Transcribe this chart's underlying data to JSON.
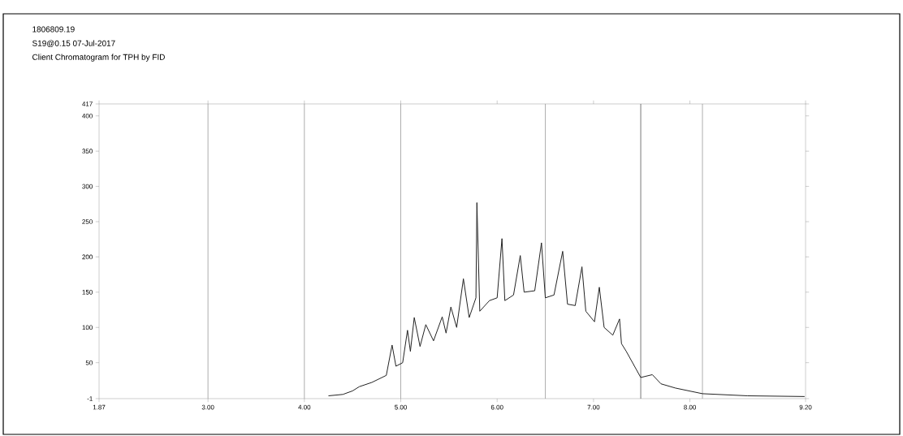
{
  "chart_data": {
    "type": "line",
    "title": "Client Chromatogram for TPH by FID",
    "annotations": [
      "1806809.19",
      "S19@0.15 07-Jul-2017"
    ],
    "x": [
      4.25,
      4.4,
      4.5,
      4.57,
      4.7,
      4.85,
      4.91,
      4.95,
      5.02,
      5.07,
      5.1,
      5.14,
      5.2,
      5.26,
      5.34,
      5.43,
      5.47,
      5.52,
      5.58,
      5.65,
      5.71,
      5.78,
      5.79,
      5.82,
      5.92,
      6.0,
      6.05,
      6.08,
      6.17,
      6.24,
      6.28,
      6.39,
      6.46,
      6.5,
      6.59,
      6.68,
      6.73,
      6.81,
      6.88,
      6.92,
      7.01,
      7.06,
      7.11,
      7.2,
      7.27,
      7.29,
      7.34,
      7.49,
      7.61,
      7.7,
      7.85,
      8.13,
      8.6,
      9.19
    ],
    "values": [
      3,
      5,
      10,
      16,
      22,
      32,
      75,
      45,
      50,
      96,
      66,
      114,
      73,
      104,
      81,
      115,
      92,
      129,
      100,
      169,
      114,
      142,
      277,
      123,
      138,
      142,
      226,
      138,
      146,
      202,
      150,
      152,
      220,
      142,
      146,
      208,
      133,
      131,
      186,
      123,
      108,
      157,
      100,
      89,
      112,
      77,
      66,
      29,
      33,
      20,
      14,
      6,
      3,
      2
    ],
    "color": "#222222",
    "line_style": "solid",
    "marker": "none",
    "grid": false,
    "xlim": [
      1.87,
      9.2
    ],
    "ylim": [
      -1,
      417
    ],
    "xticks": [
      1.87,
      {
        "value": 3,
        "label": "3.00"
      },
      {
        "value": 4,
        "label": "4.00"
      },
      {
        "value": 5,
        "label": "5.00"
      },
      {
        "value": 6,
        "label": "6.00"
      },
      {
        "value": 7,
        "label": "7.00"
      },
      {
        "value": 8,
        "label": "8.00"
      },
      {
        "value": 9.2,
        "label": "9.20"
      }
    ],
    "yticks": [
      -1,
      50,
      100,
      150,
      200,
      250,
      300,
      350,
      400,
      417
    ],
    "ref_lines": [
      {
        "axis": "x",
        "value": 3.0,
        "color": "#999999"
      },
      {
        "axis": "x",
        "value": 4.0,
        "color": "#999999"
      },
      {
        "axis": "x",
        "value": 5.0,
        "color": "#999999"
      },
      {
        "axis": "x",
        "value": 6.5,
        "color": "#999999"
      },
      {
        "axis": "x",
        "value": 7.49,
        "color": "#555555"
      },
      {
        "axis": "x",
        "value": 8.13,
        "color": "#999999"
      }
    ]
  }
}
